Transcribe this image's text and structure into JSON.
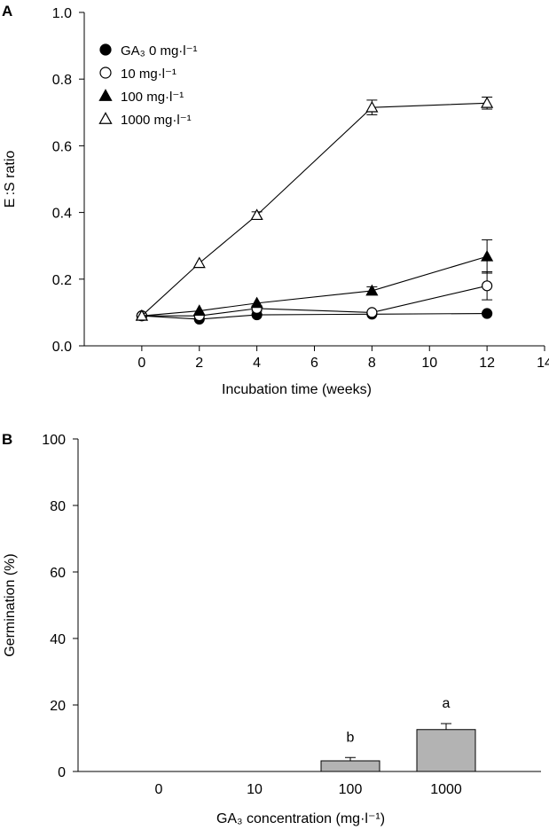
{
  "chart_data": [
    {
      "panel": "A",
      "type": "line",
      "xlabel": "Incubation time (weeks)",
      "ylabel": "E :S ratio",
      "xlim": [
        -2,
        14
      ],
      "ylim": [
        0.0,
        1.0
      ],
      "xticks": [
        "0",
        "2",
        "4",
        "6",
        "8",
        "10",
        "12",
        "14"
      ],
      "yticks": [
        "0.0",
        "0.2",
        "0.4",
        "0.6",
        "0.8",
        "1.0"
      ],
      "legend_position": "top-left",
      "x": [
        0,
        2,
        4,
        8,
        12
      ],
      "series": [
        {
          "name": "GA₃ 0 mg·l⁻¹",
          "marker": "filled-circle",
          "values": [
            0.09,
            0.08,
            0.093,
            0.095,
            0.097
          ],
          "errors": [
            0.004,
            0.004,
            0.004,
            0.004,
            0.004
          ]
        },
        {
          "name": "10 mg·l⁻¹",
          "marker": "open-circle",
          "values": [
            0.09,
            0.09,
            0.112,
            0.1,
            0.18
          ],
          "errors": [
            0.004,
            0.004,
            0.008,
            0.006,
            0.042
          ]
        },
        {
          "name": "100 mg·l⁻¹",
          "marker": "filled-triangle",
          "values": [
            0.09,
            0.105,
            0.128,
            0.165,
            0.268
          ],
          "errors": [
            0.004,
            0.006,
            0.006,
            0.012,
            0.05
          ]
        },
        {
          "name": "1000 mg·l⁻¹",
          "marker": "open-triangle",
          "values": [
            0.09,
            0.248,
            0.392,
            0.715,
            0.728
          ],
          "errors": [
            0.004,
            0.006,
            0.01,
            0.022,
            0.018
          ]
        }
      ]
    },
    {
      "panel": "B",
      "type": "bar",
      "xlabel": "GA₃ concentration (mg·l⁻¹)",
      "ylabel": "Germination (%)",
      "ylim": [
        0,
        100
      ],
      "yticks": [
        "0",
        "20",
        "40",
        "60",
        "80",
        "100"
      ],
      "categories": [
        "0",
        "10",
        "100",
        "1000"
      ],
      "values": [
        0,
        0,
        3.2,
        12.6
      ],
      "errors": [
        0,
        0,
        1.0,
        1.8
      ],
      "annotations": [
        "",
        "",
        "b",
        "a"
      ],
      "bar_color": "#b3b3b3"
    }
  ]
}
